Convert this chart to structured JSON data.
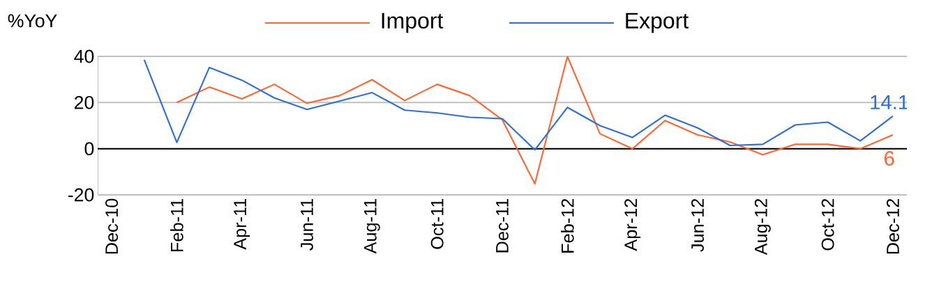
{
  "chart_data": {
    "type": "line",
    "ylabel": "%YoY",
    "categories": [
      "Dec-10",
      null,
      "Feb-11",
      null,
      "Apr-11",
      null,
      "Jun-11",
      null,
      "Aug-11",
      null,
      "Oct-11",
      null,
      "Dec-11",
      null,
      "Feb-12",
      null,
      "Apr-12",
      null,
      "Jun-12",
      null,
      "Aug-12",
      null,
      "Oct-12",
      null,
      "Dec-12"
    ],
    "series": [
      {
        "name": "Import",
        "color": "#ff6633",
        "values": [
          null,
          null,
          20,
          26.7,
          21.6,
          27.9,
          19.7,
          23,
          29.9,
          20.9,
          27.9,
          23,
          12.5,
          -15.2,
          40,
          6.5,
          0,
          12.2,
          6,
          2.9,
          -2.6,
          1.9,
          1.9,
          0,
          6
        ],
        "value_labels": [
          null,
          null,
          null,
          null,
          null,
          null,
          null,
          null,
          null,
          null,
          null,
          null,
          null,
          null,
          null,
          null,
          null,
          null,
          null,
          null,
          null,
          null,
          null,
          null,
          "6"
        ]
      },
      {
        "name": "Export",
        "color": "#2e6fd6",
        "values": [
          null,
          38.5,
          2.7,
          35.2,
          29.7,
          22,
          17,
          20.6,
          24.3,
          16.7,
          15.5,
          13.6,
          13,
          -0.5,
          17.9,
          10,
          4.9,
          14.5,
          9,
          1.4,
          1.9,
          10.3,
          11.5,
          3.4,
          14.1
        ],
        "value_labels": [
          null,
          null,
          null,
          null,
          null,
          null,
          null,
          null,
          null,
          null,
          null,
          null,
          null,
          null,
          null,
          null,
          null,
          null,
          null,
          null,
          null,
          null,
          null,
          null,
          "14.1"
        ]
      }
    ],
    "ylim": [
      -20,
      40
    ],
    "yticks": [
      -20,
      0,
      20,
      40
    ],
    "grid": "y",
    "legend": "top"
  }
}
